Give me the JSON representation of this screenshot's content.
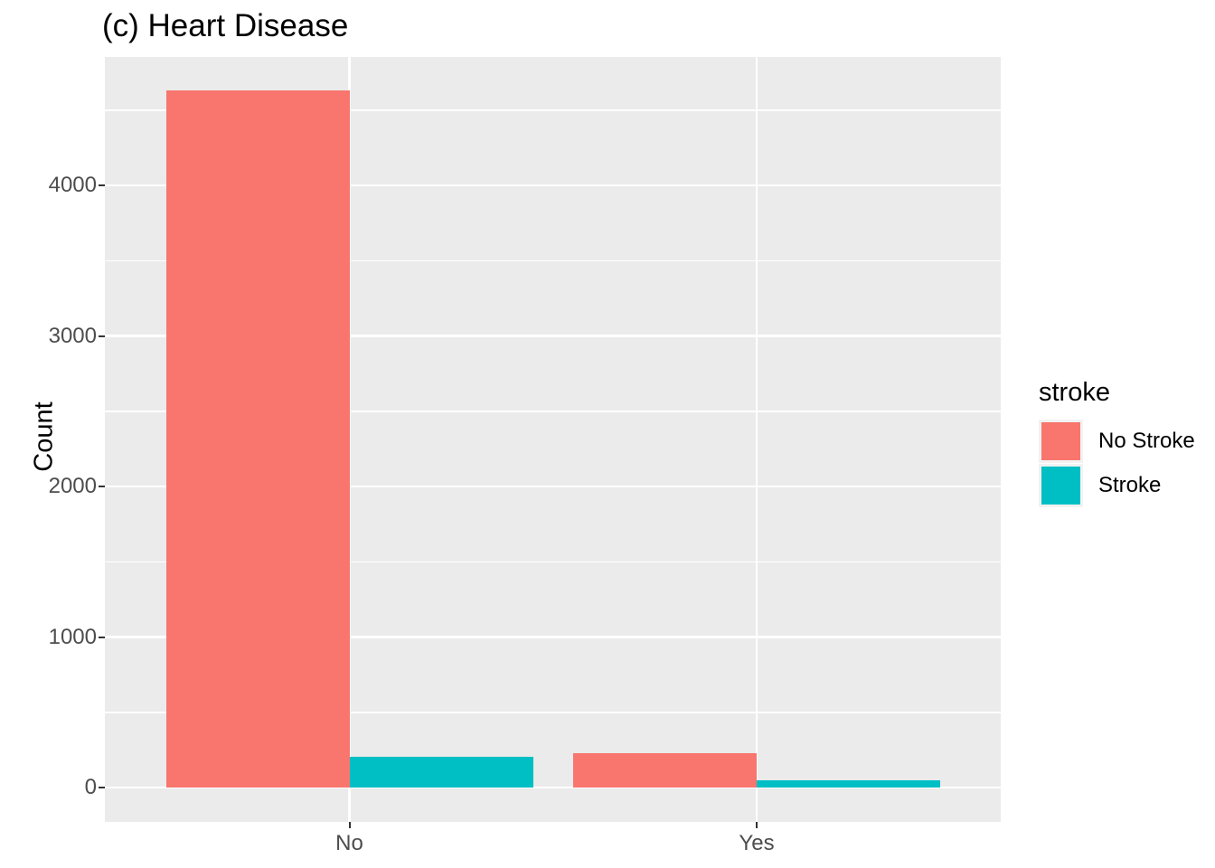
{
  "figure": {
    "title": "(c) Heart Disease"
  },
  "chart_data": {
    "type": "bar",
    "bar_mode": "dodge",
    "title": "(c) Heart Disease",
    "xlabel": "",
    "ylabel": "Count",
    "categories": [
      "No",
      "Yes"
    ],
    "series": [
      {
        "name": "No Stroke",
        "color": "#F8766D",
        "values": [
          4632,
          229
        ]
      },
      {
        "name": "Stroke",
        "color": "#00BFC4",
        "values": [
          202,
          47
        ]
      }
    ],
    "legend": {
      "title": "stroke",
      "position": "right",
      "entries": [
        "No Stroke",
        "Stroke"
      ]
    },
    "y_axis": {
      "ticks": [
        0,
        1000,
        2000,
        3000,
        4000
      ],
      "minor_ticks": [
        500,
        1500,
        2500,
        3500,
        4500
      ],
      "range_shown": [
        -230,
        4860
      ]
    },
    "grid": "white major+minor horizontal, white major vertical, on gray panel",
    "style": {
      "panel_bg": "#EBEBEB",
      "grid_color": "#FFFFFF",
      "axis_text_color": "#4D4D4D",
      "tick_color": "#333333",
      "title_color": "#000000"
    }
  }
}
